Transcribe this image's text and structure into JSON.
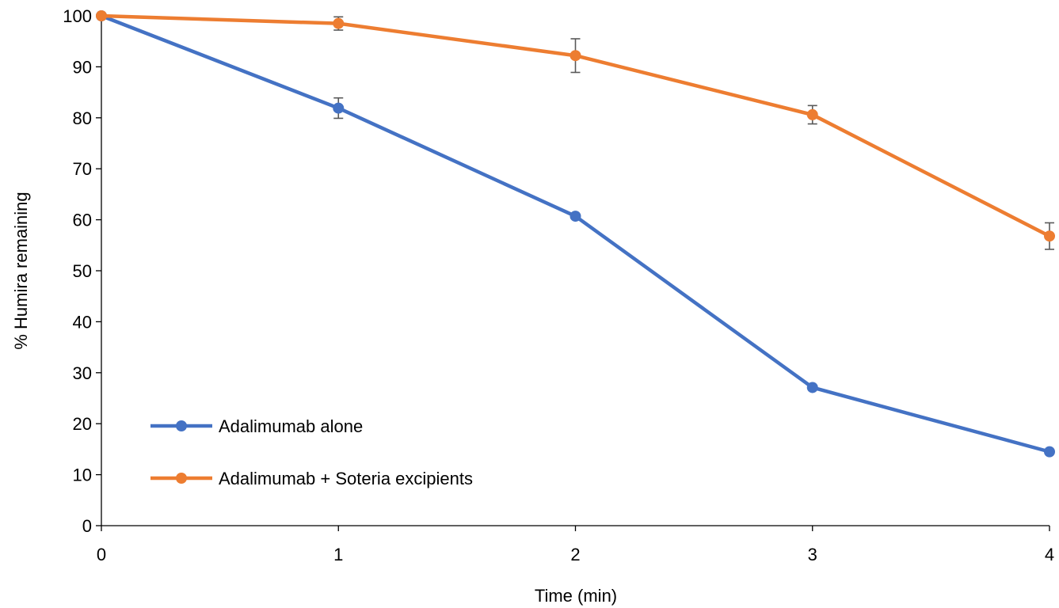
{
  "chart_data": {
    "type": "line",
    "xlabel": "Time (min)",
    "ylabel": "% Humira remaining",
    "x": [
      0,
      1,
      2,
      3,
      4
    ],
    "xlim": [
      0,
      4
    ],
    "ylim": [
      0,
      100
    ],
    "xticks": [
      "0",
      "1",
      "2",
      "3",
      "4"
    ],
    "yticks": [
      "0",
      "10",
      "20",
      "30",
      "40",
      "50",
      "60",
      "70",
      "80",
      "90",
      "100"
    ],
    "grid": false,
    "legend_position": "bottom-left",
    "series": [
      {
        "name": "Adalimumab alone",
        "color": "#4472C4",
        "values": [
          100,
          81.9,
          60.7,
          27.1,
          14.5
        ],
        "error": [
          0,
          2.0,
          0,
          0,
          0
        ]
      },
      {
        "name": "Adalimumab + Soteria excipients",
        "color": "#ED7D31",
        "values": [
          100,
          98.5,
          92.2,
          80.6,
          56.8
        ],
        "error": [
          0,
          1.3,
          3.3,
          1.8,
          2.6
        ]
      }
    ]
  }
}
